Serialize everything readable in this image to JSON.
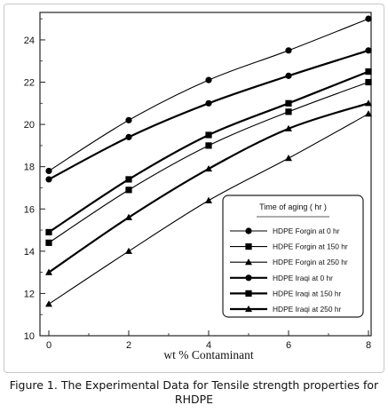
{
  "caption": "Figure 1. The Experimental Data for Tensile strength properties for RHDPE",
  "chart_data": {
    "type": "line",
    "xlabel": "wt % Contaminant",
    "ylabel": "",
    "xlim": [
      0,
      8
    ],
    "ylim": [
      10,
      25.3
    ],
    "x_ticks": [
      0,
      2,
      4,
      6,
      8
    ],
    "y_ticks": [
      10,
      12,
      14,
      16,
      18,
      20,
      22,
      24
    ],
    "grid": false,
    "legend_title": "Time of aging ( hr )",
    "legend_position": "right",
    "series": [
      {
        "name": "HDPE Forgin at 0 hr",
        "marker": "circle",
        "weight": "thin",
        "x": [
          0,
          2,
          4,
          6,
          8
        ],
        "y": [
          17.8,
          20.2,
          22.1,
          23.5,
          25.0
        ]
      },
      {
        "name": "HDPE Forgin at 150 hr",
        "marker": "square",
        "weight": "thin",
        "x": [
          0,
          2,
          4,
          6,
          8
        ],
        "y": [
          14.4,
          16.9,
          19.0,
          20.6,
          22.0
        ]
      },
      {
        "name": "HDPE Forgin at 250 hr",
        "marker": "triangle",
        "weight": "thin",
        "x": [
          0,
          2,
          4,
          6,
          8
        ],
        "y": [
          11.5,
          14.0,
          16.4,
          18.4,
          20.5
        ]
      },
      {
        "name": "HDPE Iraqi at 0 hr",
        "marker": "circle",
        "weight": "thick",
        "x": [
          0,
          2,
          4,
          6,
          8
        ],
        "y": [
          17.4,
          19.4,
          21.0,
          22.3,
          23.5
        ]
      },
      {
        "name": "HDPE Iraqi at 150 hr",
        "marker": "square",
        "weight": "thick",
        "x": [
          0,
          2,
          4,
          6,
          8
        ],
        "y": [
          14.9,
          17.4,
          19.5,
          21.0,
          22.5
        ]
      },
      {
        "name": "HDPE Iraqi at 250 hr",
        "marker": "triangle",
        "weight": "thick",
        "x": [
          0,
          2,
          4,
          6,
          8
        ],
        "y": [
          13.0,
          15.6,
          17.9,
          19.8,
          21.0
        ]
      }
    ]
  }
}
